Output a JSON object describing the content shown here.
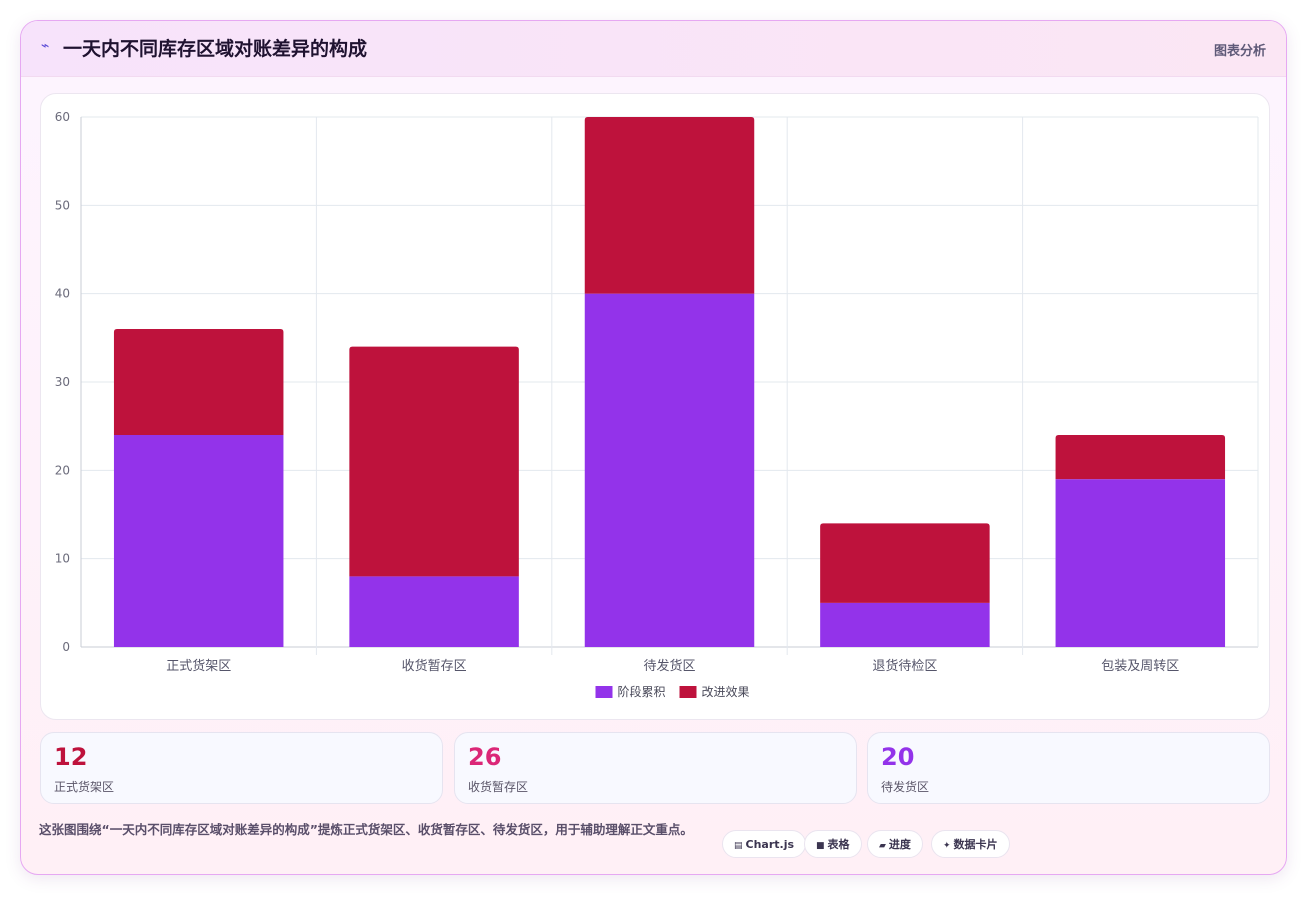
{
  "header": {
    "icon": "chart-wave-icon",
    "title": "一天内不同库存区域对账差异的构成",
    "tag": "图表分析"
  },
  "chart_data": {
    "type": "bar",
    "stacked": true,
    "categories": [
      "正式货架区",
      "收货暂存区",
      "待发货区",
      "退货待检区",
      "包装及周转区"
    ],
    "series": [
      {
        "name": "阶段累积",
        "color": "#9333ea",
        "values": [
          24,
          8,
          40,
          5,
          19
        ]
      },
      {
        "name": "改进效果",
        "color": "#be123c",
        "values": [
          12,
          26,
          20,
          9,
          5
        ]
      }
    ],
    "ylim": [
      0,
      60
    ],
    "yticks": [
      0,
      10,
      20,
      30,
      40,
      50,
      60
    ],
    "grid": true,
    "legend": "bottom"
  },
  "stats": [
    {
      "value": "12",
      "label": "正式货架区",
      "color": "#be123c"
    },
    {
      "value": "26",
      "label": "收货暂存区",
      "color": "#db2777"
    },
    {
      "value": "20",
      "label": "待发货区",
      "color": "#9333ea"
    }
  ],
  "note": "这张图围绕“一天内不同库存区域对账差异的构成”提炼正式货架区、收货暂存区、待发货区，用于辅助理解正文重点。",
  "pills": [
    {
      "icon": "▤",
      "label": "Chart.js"
    },
    {
      "icon": "■",
      "label": "表格"
    },
    {
      "icon": "▰",
      "label": "进度"
    },
    {
      "icon": "✦",
      "label": "数据卡片"
    }
  ]
}
